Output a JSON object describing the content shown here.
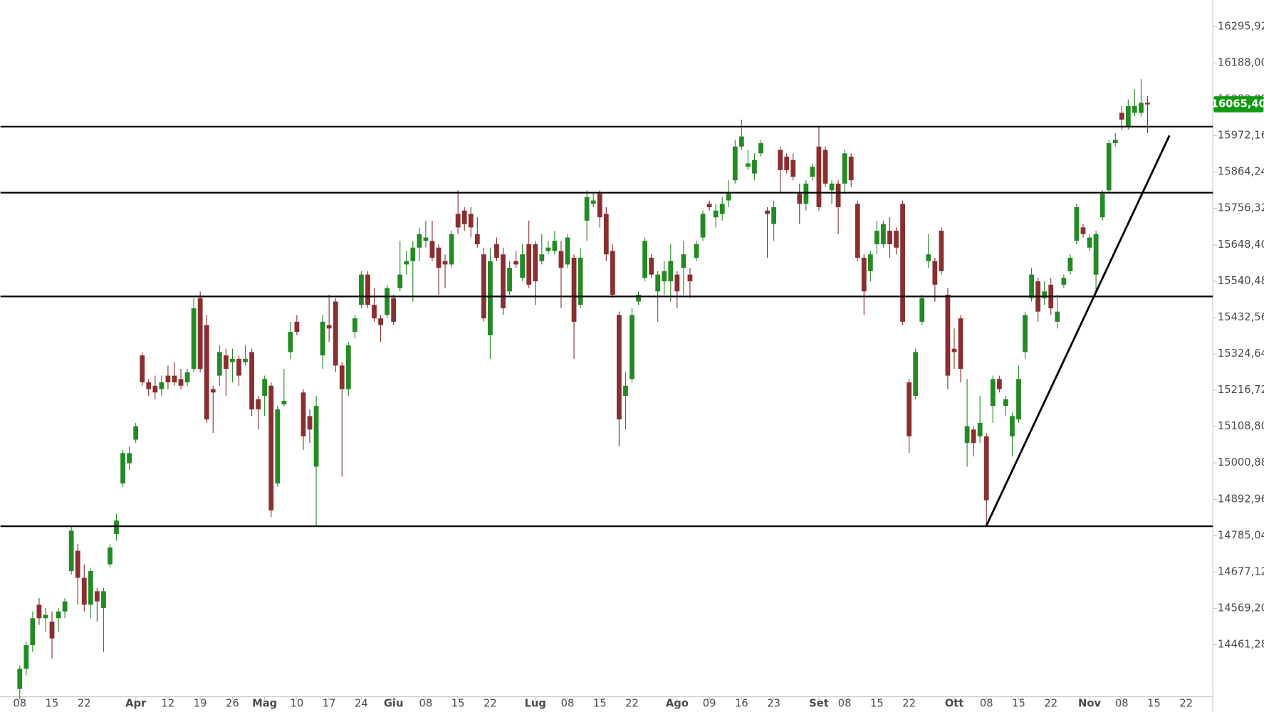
{
  "chart_data": {
    "type": "candlestick",
    "up_color": "#248a24",
    "down_color": "#8a2f30",
    "open": [
      14330,
      14390,
      14460,
      14580,
      14540,
      14530,
      14540,
      14560,
      14680,
      14740,
      14660,
      14580,
      14620,
      14570,
      14700,
      14790,
      14940,
      15000,
      15070,
      15320,
      15240,
      15230,
      15220,
      15260,
      15260,
      15250,
      15240,
      15280,
      15490,
      15410,
      15220,
      15260,
      15320,
      15300,
      15310,
      15300,
      15330,
      15190,
      15200,
      15230,
      14940,
      15175,
      15330,
      15420,
      15210,
      15140,
      14990,
      15320,
      15410,
      15480,
      15290,
      15220,
      15390,
      15470,
      15560,
      15470,
      15430,
      15440,
      15490,
      15520,
      15590,
      15600,
      15640,
      15660,
      15660,
      15640,
      15600,
      15590,
      15740,
      15750,
      15740,
      15680,
      15620,
      15380,
      15650,
      15620,
      15510,
      15600,
      15550,
      15650,
      15650,
      15600,
      15630,
      15630,
      15630,
      15590,
      15610,
      15470,
      15720,
      15770,
      15800,
      15740,
      15630,
      15440,
      15200,
      15250,
      15480,
      15550,
      15610,
      15510,
      15540,
      15540,
      15560,
      15580,
      15560,
      15610,
      15670,
      15770,
      15730,
      15740,
      15780,
      15840,
      15940,
      15880,
      15860,
      15920,
      15750,
      15710,
      15930,
      15910,
      15900,
      15800,
      15770,
      15850,
      15940,
      15930,
      15810,
      15830,
      15830,
      15910,
      15770,
      15610,
      15570,
      15650,
      15650,
      15690,
      15690,
      15770,
      15240,
      15200,
      15420,
      15600,
      15600,
      15690,
      15500,
      15340,
      15430,
      15060,
      15100,
      15080,
      15080,
      15170,
      15250,
      15170,
      15080,
      15130,
      15330,
      15490,
      15540,
      15490,
      15530,
      15420,
      15530,
      15570,
      15660,
      15700,
      15640,
      15560,
      15730,
      15810,
      15950,
      16040,
      16000,
      16040,
      16040,
      16070
    ],
    "high": [
      14400,
      14470,
      14560,
      14600,
      14570,
      14560,
      14570,
      14600,
      14815,
      14760,
      14700,
      14690,
      14630,
      14630,
      14760,
      14850,
      15040,
      15050,
      15120,
      15330,
      15250,
      15260,
      15260,
      15290,
      15300,
      15280,
      15280,
      15490,
      15510,
      15440,
      15230,
      15350,
      15340,
      15340,
      15320,
      15350,
      15340,
      15200,
      15260,
      15240,
      15170,
      15280,
      15420,
      15440,
      15220,
      15160,
      15200,
      15440,
      15500,
      15490,
      15300,
      15360,
      15440,
      15570,
      15570,
      15520,
      15440,
      15530,
      15500,
      15660,
      15630,
      15660,
      15700,
      15720,
      15720,
      15650,
      15620,
      15690,
      15810,
      15760,
      15760,
      15730,
      15640,
      15640,
      15670,
      15640,
      15600,
      15630,
      15650,
      15720,
      15660,
      15680,
      15660,
      15690,
      15660,
      15680,
      15620,
      15640,
      15810,
      15800,
      15810,
      15760,
      15650,
      15450,
      15270,
      15460,
      15510,
      15670,
      15620,
      15570,
      15600,
      15650,
      15570,
      15660,
      15580,
      15660,
      15750,
      15780,
      15770,
      15790,
      15840,
      15960,
      16020,
      15930,
      15920,
      15960,
      15760,
      15780,
      15940,
      15920,
      15920,
      15830,
      15840,
      15890,
      16000,
      15940,
      15840,
      15840,
      15930,
      15920,
      15780,
      15620,
      15630,
      15720,
      15720,
      15730,
      15700,
      15780,
      15250,
      15340,
      15500,
      15680,
      15610,
      15700,
      15520,
      15400,
      15440,
      15250,
      15110,
      15200,
      15090,
      15260,
      15260,
      15200,
      15150,
      15290,
      15450,
      15580,
      15550,
      15540,
      15550,
      15500,
      15560,
      15620,
      15770,
      15710,
      15680,
      15690,
      15810,
      15960,
      15980,
      16060,
      16080,
      16110,
      16140,
      16090
    ],
    "low": [
      14300,
      14370,
      14440,
      14520,
      14500,
      14420,
      14500,
      14540,
      14670,
      14580,
      14560,
      14540,
      14530,
      14440,
      14690,
      14770,
      14930,
      14980,
      15060,
      15230,
      15200,
      15190,
      15200,
      15220,
      15230,
      15220,
      15230,
      15270,
      15270,
      15120,
      15090,
      15230,
      15200,
      15240,
      15230,
      15290,
      15140,
      15100,
      15140,
      14840,
      14930,
      15170,
      15310,
      15380,
      15040,
      15060,
      14810,
      15280,
      15360,
      15270,
      14960,
      15200,
      15370,
      15460,
      15460,
      15420,
      15360,
      15430,
      15410,
      15510,
      15560,
      15480,
      15600,
      15640,
      15600,
      15500,
      15520,
      15580,
      15680,
      15690,
      15670,
      15640,
      15420,
      15310,
      15600,
      15440,
      15500,
      15580,
      15540,
      15520,
      15470,
      15590,
      15620,
      15620,
      15460,
      15580,
      15310,
      15460,
      15660,
      15760,
      15700,
      15600,
      15490,
      15050,
      15100,
      15240,
      15470,
      15540,
      15550,
      15420,
      15500,
      15480,
      15460,
      15500,
      15490,
      15600,
      15660,
      15750,
      15700,
      15720,
      15760,
      15830,
      15930,
      15870,
      15840,
      15910,
      15610,
      15660,
      15800,
      15860,
      15840,
      15710,
      15750,
      15840,
      15750,
      15820,
      15770,
      15680,
      15800,
      15820,
      15600,
      15440,
      15540,
      15620,
      15640,
      15610,
      15620,
      15410,
      15030,
      15190,
      15410,
      15580,
      15480,
      15560,
      15220,
      15280,
      15240,
      14990,
      15020,
      15060,
      14815,
      15120,
      15210,
      15140,
      15020,
      15120,
      15310,
      15480,
      15420,
      15470,
      15440,
      15400,
      15520,
      15560,
      15650,
      15670,
      15630,
      15510,
      15720,
      15800,
      15940,
      15990,
      15990,
      16030,
      16030,
      15980
    ],
    "close": [
      14390,
      14460,
      14540,
      14540,
      14550,
      14480,
      14560,
      14590,
      14800,
      14660,
      14580,
      14680,
      14590,
      14620,
      14750,
      14830,
      15030,
      15030,
      15110,
      15240,
      15220,
      15210,
      15240,
      15240,
      15240,
      15230,
      15270,
      15460,
      15280,
      15130,
      15210,
      15330,
      15280,
      15310,
      15260,
      15310,
      15160,
      15160,
      15250,
      14860,
      15160,
      15185,
      15390,
      15390,
      15080,
      15100,
      15170,
      15420,
      15400,
      15290,
      15220,
      15350,
      15430,
      15560,
      15470,
      15430,
      15410,
      15520,
      15420,
      15560,
      15600,
      15640,
      15680,
      15670,
      15610,
      15580,
      15590,
      15680,
      15700,
      15710,
      15700,
      15650,
      15430,
      15600,
      15610,
      15460,
      15580,
      15590,
      15620,
      15530,
      15540,
      15620,
      15640,
      15660,
      15580,
      15670,
      15420,
      15610,
      15790,
      15780,
      15730,
      15620,
      15500,
      15130,
      15230,
      15440,
      15500,
      15660,
      15560,
      15560,
      15570,
      15600,
      15510,
      15620,
      15540,
      15650,
      15740,
      15760,
      15750,
      15770,
      15800,
      15940,
      15970,
      15890,
      15900,
      15950,
      15740,
      15760,
      15870,
      15870,
      15850,
      15770,
      15830,
      15880,
      15760,
      15830,
      15830,
      15760,
      15920,
      15840,
      15610,
      15510,
      15620,
      15690,
      15710,
      15650,
      15640,
      15420,
      15080,
      15330,
      15490,
      15620,
      15530,
      15570,
      15260,
      15330,
      15280,
      15110,
      15060,
      15120,
      14890,
      15250,
      15220,
      15190,
      15140,
      15250,
      15440,
      15560,
      15450,
      15510,
      15460,
      15450,
      15550,
      15610,
      15760,
      15680,
      15670,
      15680,
      15800,
      15950,
      15960,
      16020,
      16060,
      16060,
      16070,
      16065
    ],
    "xlim": [
      -3,
      185.125
    ],
    "xticks": [
      {
        "value": 0,
        "label": "08"
      },
      {
        "value": 5,
        "label": "15"
      },
      {
        "value": 10,
        "label": "22"
      },
      {
        "value": 18,
        "label": "Apr"
      },
      {
        "value": 23,
        "label": "12"
      },
      {
        "value": 28,
        "label": "19"
      },
      {
        "value": 33,
        "label": "26"
      },
      {
        "value": 38,
        "label": "Mag"
      },
      {
        "value": 43,
        "label": "10"
      },
      {
        "value": 48,
        "label": "17"
      },
      {
        "value": 53,
        "label": "24"
      },
      {
        "value": 58,
        "label": "Giu"
      },
      {
        "value": 63,
        "label": "08"
      },
      {
        "value": 68,
        "label": "15"
      },
      {
        "value": 73,
        "label": "22"
      },
      {
        "value": 80,
        "label": "Lug"
      },
      {
        "value": 85,
        "label": "08"
      },
      {
        "value": 90,
        "label": "15"
      },
      {
        "value": 95,
        "label": "22"
      },
      {
        "value": 102,
        "label": "Ago"
      },
      {
        "value": 107,
        "label": "09"
      },
      {
        "value": 112,
        "label": "16"
      },
      {
        "value": 117,
        "label": "23"
      },
      {
        "value": 124,
        "label": "Set"
      },
      {
        "value": 128,
        "label": "08"
      },
      {
        "value": 133,
        "label": "15"
      },
      {
        "value": 138,
        "label": "22"
      },
      {
        "value": 145,
        "label": "Ott"
      },
      {
        "value": 150,
        "label": "08"
      },
      {
        "value": 155,
        "label": "15"
      },
      {
        "value": 160,
        "label": "22"
      },
      {
        "value": 166,
        "label": "Nov"
      },
      {
        "value": 171,
        "label": "08"
      },
      {
        "value": 176,
        "label": "15"
      },
      {
        "value": 181,
        "label": "22"
      }
    ],
    "ylim": [
      14307,
      16375
    ],
    "yticks": [
      {
        "value": 16295.92,
        "label": "16295,92"
      },
      {
        "value": 16188.0,
        "label": "16188,00"
      },
      {
        "value": 16080.08,
        "label": "16080,08"
      },
      {
        "value": 15972.16,
        "label": "15972,16"
      },
      {
        "value": 15864.24,
        "label": "15864,24"
      },
      {
        "value": 15756.32,
        "label": "15756,32"
      },
      {
        "value": 15648.4,
        "label": "15648,40"
      },
      {
        "value": 15540.48,
        "label": "15540,48"
      },
      {
        "value": 15432.56,
        "label": "15432,56"
      },
      {
        "value": 15324.64,
        "label": "15324,64"
      },
      {
        "value": 15216.72,
        "label": "15216,72"
      },
      {
        "value": 15108.8,
        "label": "15108,80"
      },
      {
        "value": 15000.88,
        "label": "15000,88"
      },
      {
        "value": 14892.96,
        "label": "14892,96"
      },
      {
        "value": 14785.04,
        "label": "14785,04"
      },
      {
        "value": 14677.12,
        "label": "14677,12"
      },
      {
        "value": 14569.2,
        "label": "14569,20"
      },
      {
        "value": 14461.28,
        "label": "14461,28"
      }
    ],
    "levels": [
      15999,
      15803,
      15495,
      14813
    ],
    "trendline": {
      "x": [
        150,
        178.4
      ],
      "y": [
        14815,
        15973
      ]
    },
    "last_price": {
      "value": 16065.4,
      "label": "16065,40",
      "color": "#119911"
    }
  }
}
